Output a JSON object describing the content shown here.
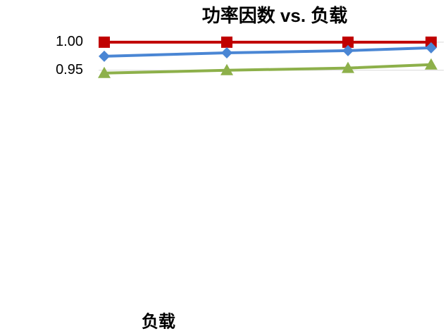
{
  "chart_data": {
    "type": "line",
    "title": "功率因数 vs. 负载",
    "x_label": "负载",
    "categories": [
      null,
      null,
      null,
      null
    ],
    "series": [
      {
        "color": "#c00000",
        "marker": "square",
        "values": [
          1.0,
          1.0,
          1.0,
          1.0
        ]
      },
      {
        "color": "#4a86d4",
        "marker": "diamond",
        "values": [
          0.975,
          0.981,
          0.985,
          0.99
        ]
      },
      {
        "color": "#8db04a",
        "marker": "triangle",
        "values": [
          0.945,
          0.95,
          0.954,
          0.96
        ]
      }
    ],
    "ylim": [
      0.58,
      1.05
    ],
    "yticks": [
      {
        "value": 0.95,
        "label": "0.95"
      },
      {
        "value": 1,
        "label": "1.00"
      }
    ],
    "grid": true
  }
}
